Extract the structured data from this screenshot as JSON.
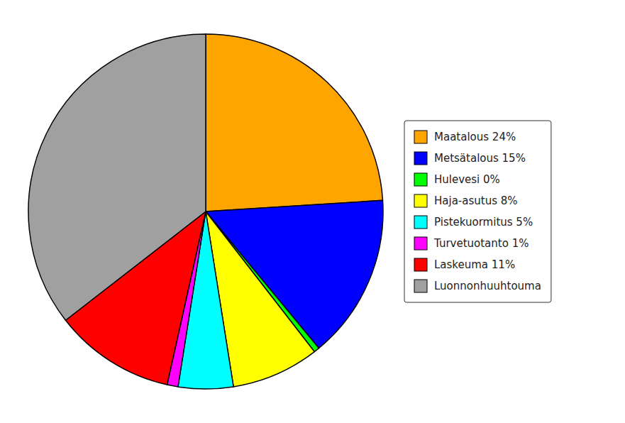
{
  "chart_data": {
    "type": "pie",
    "categories": [
      "Maatalous 24%",
      "Metsätalous 15%",
      "Hulevesi 0%",
      "Haja-asutus 8%",
      "Pistekuormitus 5%",
      "Turvetuotanto 1%",
      "Laskeuma 11%",
      "Luonnonhuuhtouma"
    ],
    "values": [
      24,
      15,
      0.5,
      8,
      5,
      1,
      11,
      35.5
    ],
    "colors": [
      "#FFA500",
      "#0000FF",
      "#00FF00",
      "#FFFF00",
      "#00FFFF",
      "#FF00FF",
      "#FF0000",
      "#A0A0A0"
    ],
    "legend": "right"
  }
}
